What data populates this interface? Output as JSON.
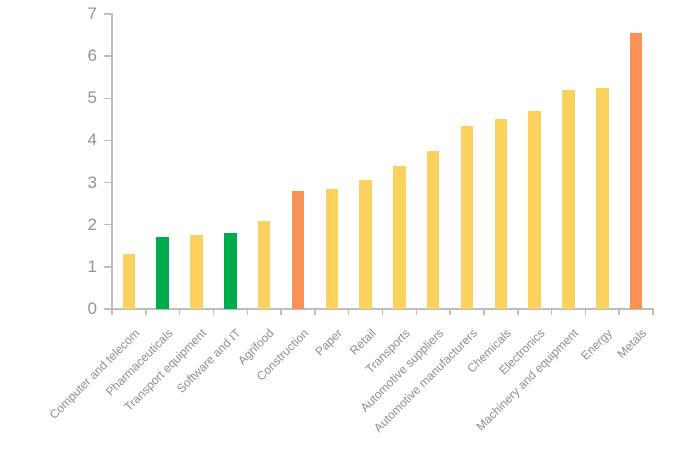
{
  "chart_data": {
    "type": "bar",
    "title": "",
    "xlabel": "",
    "ylabel": "",
    "categories": [
      "Computer and telecom",
      "Pharmaceuticals",
      "Transport equipment",
      "Software and IT",
      "Agrifood",
      "Construction",
      "Paper",
      "Retail",
      "Transports",
      "Automotive suppliers",
      "Automotive manufacturers",
      "Chemicals",
      "Electronics",
      "Machinery and equipment",
      "Energy",
      "Metals"
    ],
    "values": [
      1.3,
      1.7,
      1.75,
      1.8,
      2.1,
      2.8,
      2.85,
      3.05,
      3.4,
      3.75,
      4.35,
      4.5,
      4.7,
      5.2,
      5.25,
      6.55
    ],
    "bar_colors": [
      "yellow",
      "green",
      "yellow",
      "green",
      "yellow",
      "orange",
      "yellow",
      "yellow",
      "yellow",
      "yellow",
      "yellow",
      "yellow",
      "yellow",
      "yellow",
      "yellow",
      "orange"
    ],
    "palette": {
      "yellow": "#FCD25F",
      "green": "#00AB4E",
      "orange": "#FA9155"
    },
    "ylim": [
      0,
      7
    ],
    "ytick_labels": [
      "0",
      "1",
      "2",
      "3",
      "4",
      "5",
      "6",
      "7"
    ],
    "grid": false,
    "legend": "none",
    "axis_color": "#BDBDBD",
    "tick_label_color": "#949494",
    "category_label_color": "#8E8E8E",
    "background_color": "#FFFFFF"
  }
}
